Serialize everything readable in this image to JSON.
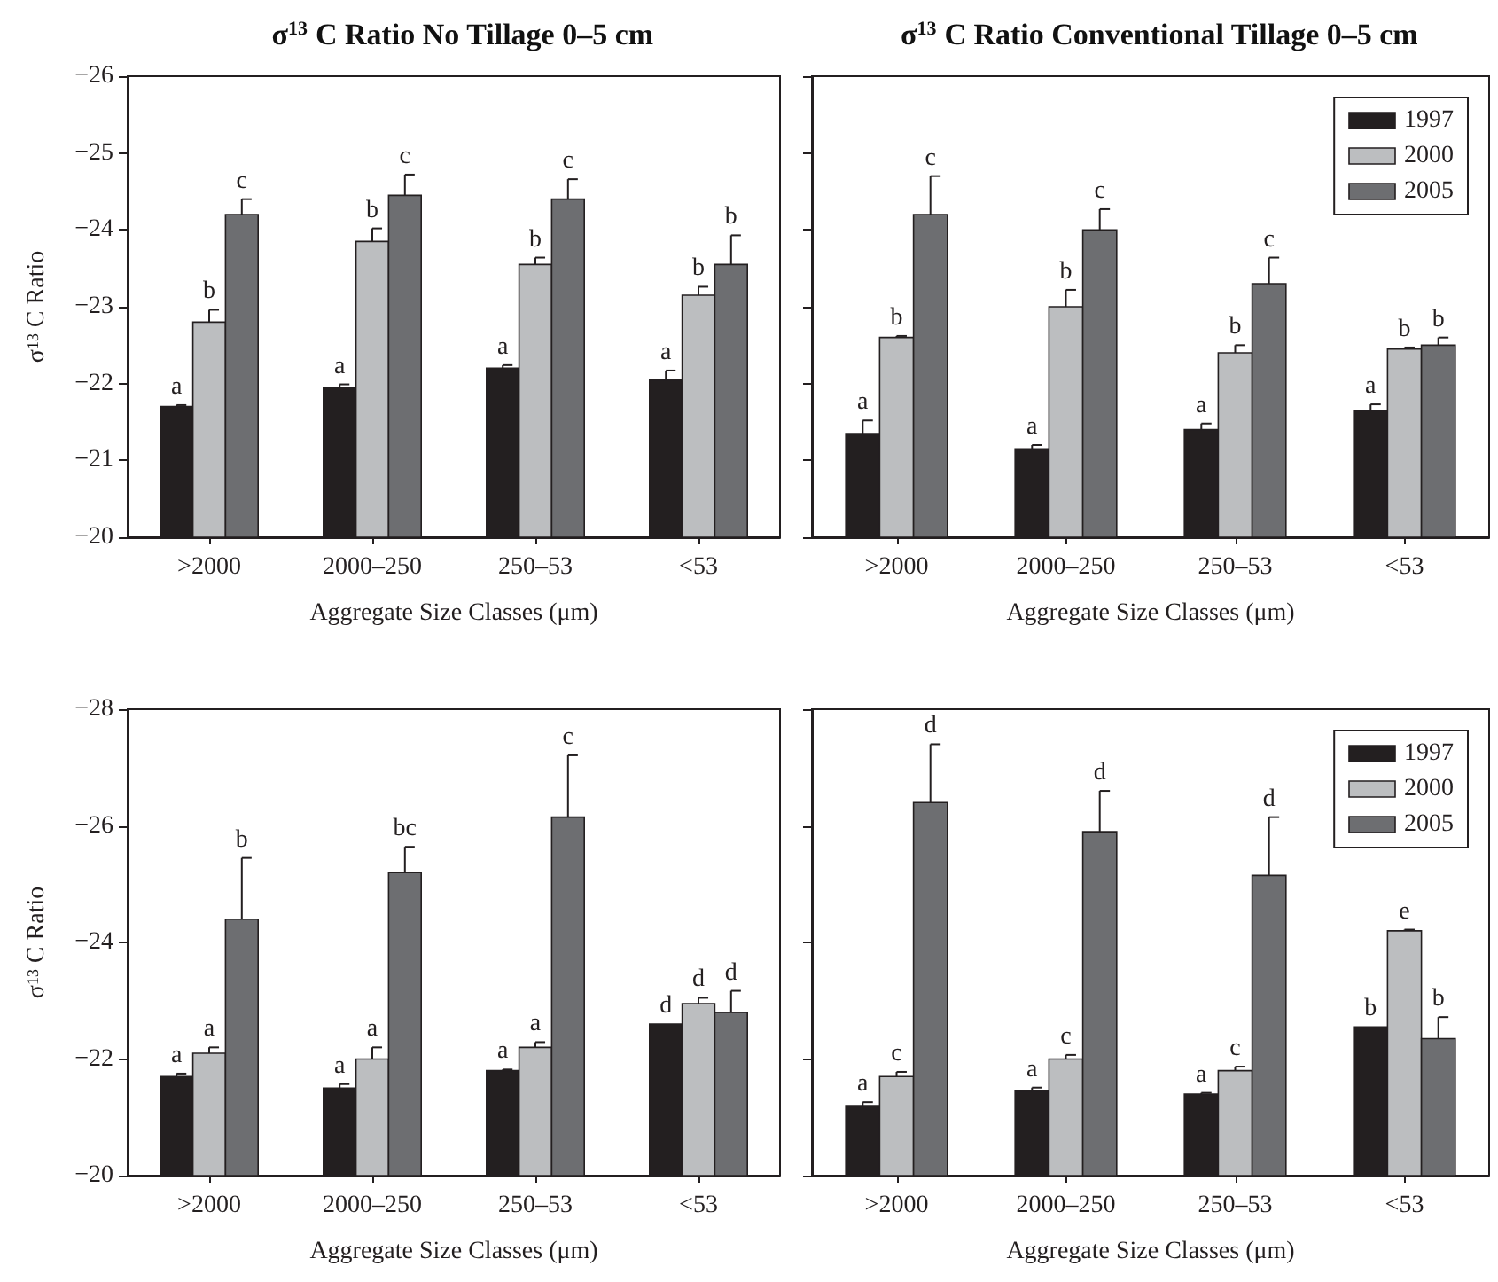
{
  "chart_data": [
    {
      "type": "bar",
      "title": "σ$^{13}$ C Ratio No Tillage 0–5 cm",
      "xlabel": "Aggregate Size Classes (μm)",
      "ylabel": "σ$^{13}$ C Ratio",
      "categories": [
        ">2000",
        "2000–250",
        "250–53",
        "<53"
      ],
      "ylim": [
        -20,
        -26
      ],
      "yticks": [
        -20,
        -21,
        -22,
        -23,
        -24,
        -25,
        -26
      ],
      "legend": false,
      "series": [
        {
          "color": "#231f20",
          "values": [
            -21.7,
            -21.95,
            -22.2,
            -22.05
          ],
          "errors": [
            0.02,
            0.04,
            0.04,
            0.12
          ],
          "value_labels": [
            "a",
            "a",
            "a",
            "a"
          ]
        },
        {
          "color": "#bcbec0",
          "values": [
            -22.8,
            -23.85,
            -23.55,
            -23.15
          ],
          "errors": [
            0.16,
            0.17,
            0.09,
            0.11
          ],
          "value_labels": [
            "b",
            "b",
            "b",
            "b"
          ]
        },
        {
          "color": "#6d6e71",
          "values": [
            -24.2,
            -24.45,
            -24.4,
            -23.55
          ],
          "errors": [
            0.2,
            0.27,
            0.26,
            0.38
          ],
          "value_labels": [
            "c",
            "c",
            "c",
            "b"
          ]
        }
      ]
    },
    {
      "type": "bar",
      "title": "σ$^{13}$ C Ratio Conventional Tillage 0–5 cm",
      "xlabel": "Aggregate Size Classes (μm)",
      "categories": [
        ">2000",
        "2000–250",
        "250–53",
        "<53"
      ],
      "ylim": [
        -20,
        -26
      ],
      "yticks": [
        -20,
        -21,
        -22,
        -23,
        -24,
        -25,
        -26
      ],
      "legend": "top right",
      "tick_labels": "x",
      "series": [
        {
          "name": "1997",
          "color": "#231f20",
          "values": [
            -21.35,
            -21.15,
            -21.4,
            -21.65
          ],
          "errors": [
            0.17,
            0.05,
            0.08,
            0.08
          ],
          "value_labels": [
            "a",
            "a",
            "a",
            "a"
          ]
        },
        {
          "name": "2000",
          "color": "#bcbec0",
          "values": [
            -22.6,
            -23.0,
            -22.4,
            -22.45
          ],
          "errors": [
            0.02,
            0.22,
            0.1,
            0.02
          ],
          "value_labels": [
            "b",
            "b",
            "b",
            "b"
          ]
        },
        {
          "name": "2005",
          "color": "#6d6e71",
          "values": [
            -24.2,
            -24.0,
            -23.3,
            -22.5
          ],
          "errors": [
            0.5,
            0.27,
            0.34,
            0.1
          ],
          "value_labels": [
            "c",
            "c",
            "c",
            "b"
          ]
        }
      ]
    },
    {
      "type": "bar",
      "xlabel": "Aggregate Size Classes (μm)",
      "ylabel": "σ$^{13}$ C Ratio",
      "categories": [
        ">2000",
        "2000–250",
        "250–53",
        "<53"
      ],
      "ylim": [
        -20,
        -28
      ],
      "yticks": [
        -20,
        -22,
        -24,
        -26,
        -28
      ],
      "legend": false,
      "series": [
        {
          "color": "#231f20",
          "values": [
            -21.7,
            -21.5,
            -21.8,
            -22.6
          ],
          "errors": [
            0.05,
            0.07,
            0.02,
            null
          ],
          "value_labels": [
            "a",
            "a",
            "a",
            "d"
          ]
        },
        {
          "color": "#bcbec0",
          "values": [
            -22.1,
            -22.0,
            -22.2,
            -22.95
          ],
          "errors": [
            0.1,
            0.2,
            0.09,
            0.1
          ],
          "value_labels": [
            "a",
            "a",
            "a",
            "d"
          ]
        },
        {
          "color": "#6d6e71",
          "values": [
            -24.4,
            -25.2,
            -26.15,
            -22.8
          ],
          "errors": [
            1.05,
            0.44,
            1.06,
            0.37
          ],
          "value_labels": [
            "b",
            "bc",
            "c",
            "d"
          ]
        }
      ]
    },
    {
      "type": "bar",
      "xlabel": "Aggregate Size Classes (μm)",
      "categories": [
        ">2000",
        "2000–250",
        "250–53",
        "<53"
      ],
      "ylim": [
        -20,
        -28
      ],
      "yticks": [
        -20,
        -22,
        -24,
        -26,
        -28
      ],
      "legend": "top right",
      "tick_labels": "x",
      "series": [
        {
          "name": "1997",
          "color": "#231f20",
          "values": [
            -21.2,
            -21.45,
            -21.4,
            -22.55
          ],
          "errors": [
            0.06,
            0.06,
            0.02,
            null
          ],
          "value_labels": [
            "a",
            "a",
            "a",
            "b"
          ]
        },
        {
          "name": "2000",
          "color": "#bcbec0",
          "values": [
            -21.7,
            -22.0,
            -21.8,
            -24.2
          ],
          "errors": [
            0.08,
            0.07,
            0.07,
            0.02
          ],
          "value_labels": [
            "c",
            "c",
            "c",
            "e"
          ]
        },
        {
          "name": "2005",
          "color": "#6d6e71",
          "values": [
            -26.4,
            -25.9,
            -25.15,
            -22.35
          ],
          "errors": [
            1.0,
            0.7,
            1.0,
            0.37
          ],
          "value_labels": [
            "d",
            "d",
            "d",
            "b"
          ]
        }
      ]
    }
  ]
}
